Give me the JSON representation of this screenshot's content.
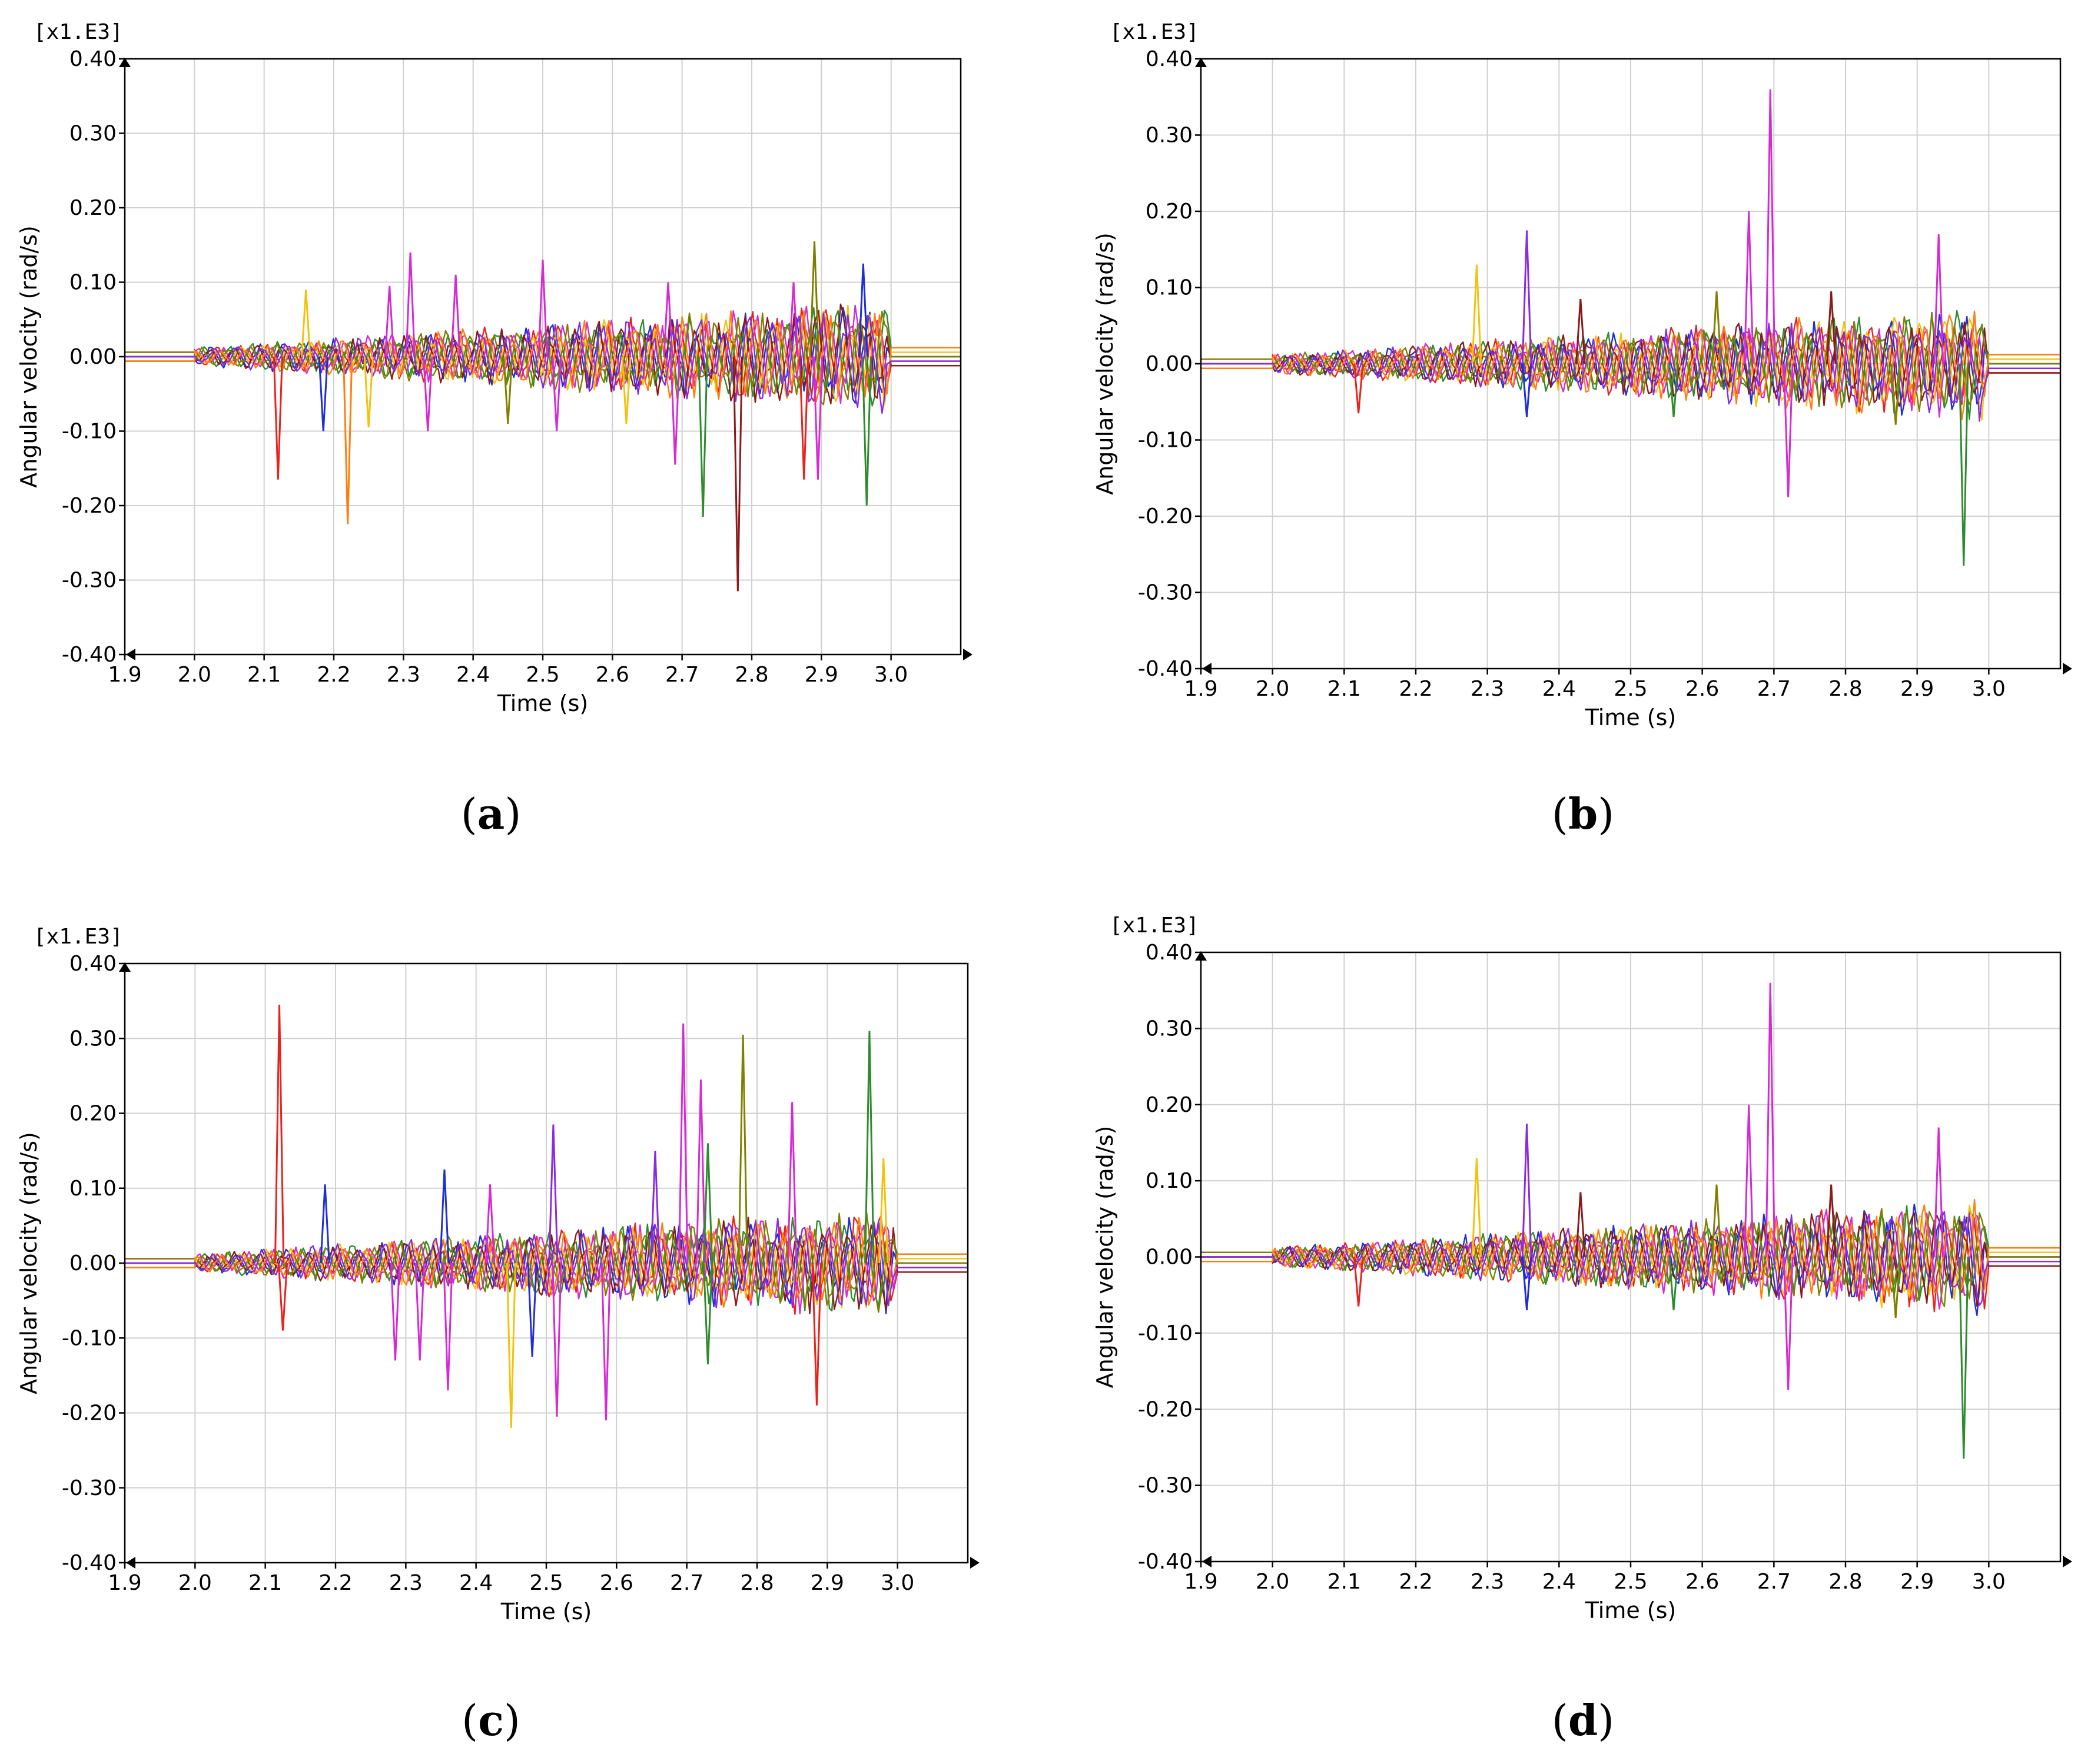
{
  "figure": {
    "colors": {
      "axis": "#000000",
      "series_palette": [
        "#e8221c",
        "#1f2fd1",
        "#2e8b2e",
        "#d42bd4",
        "#f2c20c",
        "#8b1a1a",
        "#808000",
        "#ff7f0e",
        "#8a2be2"
      ]
    }
  },
  "chart_data": [
    {
      "panel": "a",
      "caption_letter": "a",
      "type": "line",
      "title": "",
      "xlabel": "Time (s)",
      "ylabel": "Angular velocity (rad/s)",
      "scale_label": "[x1.E3]",
      "xlim": [
        1.9,
        3.1
      ],
      "ylim": [
        -0.4,
        0.4
      ],
      "xticks": [
        "1.9",
        "2.0",
        "2.1",
        "2.2",
        "2.3",
        "2.4",
        "2.5",
        "2.6",
        "2.7",
        "2.8",
        "2.9",
        "3.0"
      ],
      "yticks": [
        "0.40",
        "0.30",
        "0.20",
        "0.10",
        "0.00",
        "-0.10",
        "-0.20",
        "-0.30",
        "-0.40"
      ],
      "grid": true,
      "spikes": [
        {
          "t": 2.12,
          "v": -0.165,
          "color": "#e8221c"
        },
        {
          "t": 2.16,
          "v": 0.09,
          "color": "#f2c20c"
        },
        {
          "t": 2.185,
          "v": -0.1,
          "color": "#1f2fd1"
        },
        {
          "t": 2.22,
          "v": -0.225,
          "color": "#ff7f0e"
        },
        {
          "t": 2.25,
          "v": -0.095,
          "color": "#f2c20c"
        },
        {
          "t": 2.28,
          "v": 0.095,
          "color": "#d42bd4"
        },
        {
          "t": 2.31,
          "v": 0.14,
          "color": "#d42bd4"
        },
        {
          "t": 2.335,
          "v": -0.1,
          "color": "#d42bd4"
        },
        {
          "t": 2.375,
          "v": 0.11,
          "color": "#d42bd4"
        },
        {
          "t": 2.45,
          "v": -0.09,
          "color": "#808000"
        },
        {
          "t": 2.5,
          "v": 0.13,
          "color": "#d42bd4"
        },
        {
          "t": 2.52,
          "v": -0.1,
          "color": "#d42bd4"
        },
        {
          "t": 2.62,
          "v": -0.09,
          "color": "#f2c20c"
        },
        {
          "t": 2.68,
          "v": 0.1,
          "color": "#d42bd4"
        },
        {
          "t": 2.69,
          "v": -0.145,
          "color": "#d42bd4"
        },
        {
          "t": 2.73,
          "v": -0.215,
          "color": "#2e8b2e"
        },
        {
          "t": 2.78,
          "v": -0.315,
          "color": "#8b1a1a"
        },
        {
          "t": 2.86,
          "v": 0.1,
          "color": "#d42bd4"
        },
        {
          "t": 2.875,
          "v": -0.165,
          "color": "#e8221c"
        },
        {
          "t": 2.89,
          "v": 0.155,
          "color": "#808000"
        },
        {
          "t": 2.895,
          "v": -0.165,
          "color": "#d42bd4"
        },
        {
          "t": 2.96,
          "v": 0.125,
          "color": "#1f2fd1"
        },
        {
          "t": 2.965,
          "v": -0.2,
          "color": "#2e8b2e"
        }
      ]
    },
    {
      "panel": "b",
      "caption_letter": "b",
      "type": "line",
      "title": "",
      "xlabel": "Time (s)",
      "ylabel": "Angular velocity (rad/s)",
      "scale_label": "[x1.E3]",
      "xlim": [
        1.9,
        3.1
      ],
      "ylim": [
        -0.4,
        0.4
      ],
      "xticks": [
        "1.9",
        "2.0",
        "2.1",
        "2.2",
        "2.3",
        "2.4",
        "2.5",
        "2.6",
        "2.7",
        "2.8",
        "2.9",
        "3.0"
      ],
      "yticks": [
        "0.40",
        "0.30",
        "0.20",
        "0.10",
        "0.00",
        "-0.10",
        "-0.20",
        "-0.30",
        "-0.40"
      ],
      "grid": true,
      "spikes": [
        {
          "t": 2.12,
          "v": -0.065,
          "color": "#e8221c"
        },
        {
          "t": 2.285,
          "v": 0.13,
          "color": "#f2c20c"
        },
        {
          "t": 2.355,
          "v": 0.175,
          "color": "#8a2be2"
        },
        {
          "t": 2.355,
          "v": -0.07,
          "color": "#1f2fd1"
        },
        {
          "t": 2.43,
          "v": 0.085,
          "color": "#8b1a1a"
        },
        {
          "t": 2.56,
          "v": -0.07,
          "color": "#2e8b2e"
        },
        {
          "t": 2.62,
          "v": 0.095,
          "color": "#808000"
        },
        {
          "t": 2.665,
          "v": 0.2,
          "color": "#d42bd4"
        },
        {
          "t": 2.695,
          "v": 0.36,
          "color": "#d42bd4"
        },
        {
          "t": 2.72,
          "v": -0.175,
          "color": "#d42bd4"
        },
        {
          "t": 2.78,
          "v": 0.095,
          "color": "#8b1a1a"
        },
        {
          "t": 2.87,
          "v": -0.08,
          "color": "#808000"
        },
        {
          "t": 2.93,
          "v": 0.17,
          "color": "#d42bd4"
        },
        {
          "t": 2.965,
          "v": -0.265,
          "color": "#2e8b2e"
        }
      ]
    },
    {
      "panel": "c",
      "caption_letter": "c",
      "type": "line",
      "title": "",
      "xlabel": "Time (s)",
      "ylabel": "Angular velocity (rad/s)",
      "scale_label": "[x1.E3]",
      "xlim": [
        1.9,
        3.1
      ],
      "ylim": [
        -0.4,
        0.4
      ],
      "xticks": [
        "1.9",
        "2.0",
        "2.1",
        "2.2",
        "2.3",
        "2.4",
        "2.5",
        "2.6",
        "2.7",
        "2.8",
        "2.9",
        "3.0"
      ],
      "yticks": [
        "0.40",
        "0.30",
        "0.20",
        "0.10",
        "0.00",
        "-0.10",
        "-0.20",
        "-0.30",
        "-0.40"
      ],
      "grid": true,
      "spikes": [
        {
          "t": 2.12,
          "v": 0.345,
          "color": "#e8221c"
        },
        {
          "t": 2.125,
          "v": -0.09,
          "color": "#e8221c"
        },
        {
          "t": 2.185,
          "v": 0.105,
          "color": "#1f2fd1"
        },
        {
          "t": 2.285,
          "v": -0.13,
          "color": "#d42bd4"
        },
        {
          "t": 2.32,
          "v": -0.13,
          "color": "#d42bd4"
        },
        {
          "t": 2.355,
          "v": 0.125,
          "color": "#1f2fd1"
        },
        {
          "t": 2.36,
          "v": -0.17,
          "color": "#d42bd4"
        },
        {
          "t": 2.42,
          "v": 0.105,
          "color": "#d42bd4"
        },
        {
          "t": 2.45,
          "v": -0.22,
          "color": "#f2c20c"
        },
        {
          "t": 2.48,
          "v": -0.125,
          "color": "#1f2fd1"
        },
        {
          "t": 2.51,
          "v": 0.185,
          "color": "#8a2be2"
        },
        {
          "t": 2.515,
          "v": -0.205,
          "color": "#d42bd4"
        },
        {
          "t": 2.585,
          "v": -0.21,
          "color": "#d42bd4"
        },
        {
          "t": 2.655,
          "v": 0.15,
          "color": "#8a2be2"
        },
        {
          "t": 2.695,
          "v": 0.32,
          "color": "#d42bd4"
        },
        {
          "t": 2.72,
          "v": 0.245,
          "color": "#d42bd4"
        },
        {
          "t": 2.73,
          "v": 0.16,
          "color": "#2e8b2e"
        },
        {
          "t": 2.73,
          "v": -0.135,
          "color": "#2e8b2e"
        },
        {
          "t": 2.78,
          "v": 0.305,
          "color": "#808000"
        },
        {
          "t": 2.85,
          "v": 0.215,
          "color": "#d42bd4"
        },
        {
          "t": 2.885,
          "v": -0.19,
          "color": "#e8221c"
        },
        {
          "t": 2.96,
          "v": 0.31,
          "color": "#2e8b2e"
        },
        {
          "t": 2.98,
          "v": 0.14,
          "color": "#f2c20c"
        }
      ]
    },
    {
      "panel": "d",
      "caption_letter": "d",
      "type": "line",
      "title": "",
      "xlabel": "Time (s)",
      "ylabel": "Angular velocity (rad/s)",
      "scale_label": "[x1.E3]",
      "xlim": [
        1.9,
        3.1
      ],
      "ylim": [
        -0.4,
        0.4
      ],
      "xticks": [
        "1.9",
        "2.0",
        "2.1",
        "2.2",
        "2.3",
        "2.4",
        "2.5",
        "2.6",
        "2.7",
        "2.8",
        "2.9",
        "3.0"
      ],
      "yticks": [
        "0.40",
        "0.30",
        "0.20",
        "0.10",
        "0.00",
        "-0.10",
        "-0.20",
        "-0.30",
        "-0.40"
      ],
      "grid": true,
      "spikes": [
        {
          "t": 2.12,
          "v": -0.065,
          "color": "#e8221c"
        },
        {
          "t": 2.285,
          "v": 0.13,
          "color": "#f2c20c"
        },
        {
          "t": 2.355,
          "v": 0.175,
          "color": "#8a2be2"
        },
        {
          "t": 2.355,
          "v": -0.07,
          "color": "#1f2fd1"
        },
        {
          "t": 2.43,
          "v": 0.085,
          "color": "#8b1a1a"
        },
        {
          "t": 2.56,
          "v": -0.07,
          "color": "#2e8b2e"
        },
        {
          "t": 2.62,
          "v": 0.095,
          "color": "#808000"
        },
        {
          "t": 2.665,
          "v": 0.2,
          "color": "#d42bd4"
        },
        {
          "t": 2.695,
          "v": 0.36,
          "color": "#d42bd4"
        },
        {
          "t": 2.72,
          "v": -0.175,
          "color": "#d42bd4"
        },
        {
          "t": 2.78,
          "v": 0.095,
          "color": "#8b1a1a"
        },
        {
          "t": 2.87,
          "v": -0.08,
          "color": "#808000"
        },
        {
          "t": 2.93,
          "v": 0.17,
          "color": "#d42bd4"
        },
        {
          "t": 2.965,
          "v": -0.265,
          "color": "#2e8b2e"
        }
      ]
    }
  ]
}
